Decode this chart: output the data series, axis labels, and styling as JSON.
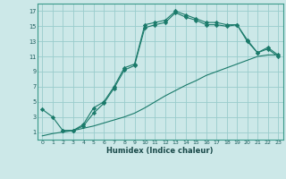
{
  "xlabel": "Humidex (Indice chaleur)",
  "bg_color": "#cce8e8",
  "grid_color": "#99cccc",
  "line_color": "#1a7a6a",
  "xlim": [
    -0.5,
    23.5
  ],
  "ylim": [
    0,
    18
  ],
  "xticks": [
    0,
    1,
    2,
    3,
    4,
    5,
    6,
    7,
    8,
    9,
    10,
    11,
    12,
    13,
    14,
    15,
    16,
    17,
    18,
    19,
    20,
    21,
    22,
    23
  ],
  "yticks": [
    1,
    3,
    5,
    7,
    9,
    11,
    13,
    15,
    17
  ],
  "line1_x": [
    0,
    1,
    2,
    3,
    4,
    5,
    6,
    7,
    8,
    9,
    10,
    11,
    12,
    13,
    14,
    15,
    16,
    17,
    18,
    19,
    20,
    21,
    22,
    23
  ],
  "line1_y": [
    4.0,
    3.0,
    1.2,
    1.2,
    2.0,
    4.2,
    5.0,
    7.0,
    9.5,
    10.0,
    15.2,
    15.5,
    15.8,
    17.0,
    16.5,
    16.0,
    15.5,
    15.5,
    15.2,
    15.2,
    13.0,
    11.5,
    12.0,
    11.0
  ],
  "line2_x": [
    2,
    3,
    4,
    5,
    6,
    7,
    8,
    9,
    10,
    11,
    12,
    13,
    14,
    15,
    16,
    17,
    18,
    19,
    20,
    21,
    22,
    23
  ],
  "line2_y": [
    1.2,
    1.2,
    1.8,
    3.5,
    4.8,
    6.8,
    9.2,
    9.8,
    14.8,
    15.2,
    15.5,
    16.8,
    16.2,
    15.8,
    15.2,
    15.2,
    15.0,
    15.2,
    13.2,
    11.5,
    12.2,
    11.2
  ],
  "line3_x": [
    0,
    1,
    2,
    3,
    4,
    5,
    6,
    7,
    8,
    9,
    10,
    11,
    12,
    13,
    14,
    15,
    16,
    17,
    18,
    19,
    20,
    21,
    22,
    23
  ],
  "line3_y": [
    0.5,
    0.8,
    1.0,
    1.2,
    1.5,
    1.8,
    2.2,
    2.6,
    3.0,
    3.5,
    4.2,
    5.0,
    5.8,
    6.5,
    7.2,
    7.8,
    8.5,
    9.0,
    9.5,
    10.0,
    10.5,
    11.0,
    11.2,
    11.2
  ]
}
